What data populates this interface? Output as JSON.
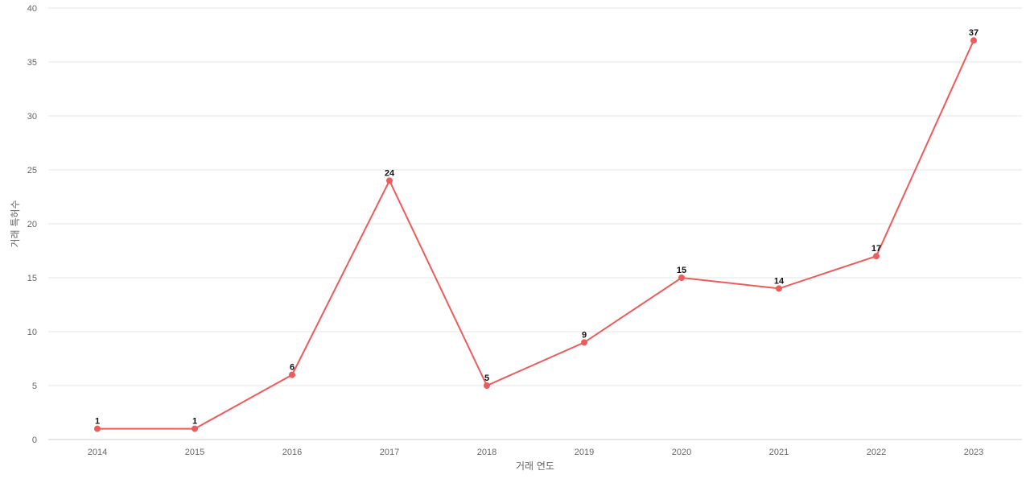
{
  "chart_data": {
    "type": "line",
    "x": [
      "2014",
      "2015",
      "2016",
      "2017",
      "2018",
      "2019",
      "2020",
      "2021",
      "2022",
      "2023"
    ],
    "series": [
      {
        "values": [
          1,
          1,
          6,
          24,
          5,
          9,
          15,
          14,
          17,
          37
        ]
      }
    ],
    "xlabel": "거래 연도",
    "ylabel": "거래 특허수",
    "ylim": [
      0,
      40
    ],
    "yticks": [
      0,
      5,
      10,
      15,
      20,
      25,
      30,
      35,
      40
    ],
    "grid": true,
    "legend": "none",
    "data_labels": true,
    "colors": {
      "line": "#ef5a5a",
      "grid": "#e6e6e6",
      "axis": "#cccccc"
    }
  }
}
